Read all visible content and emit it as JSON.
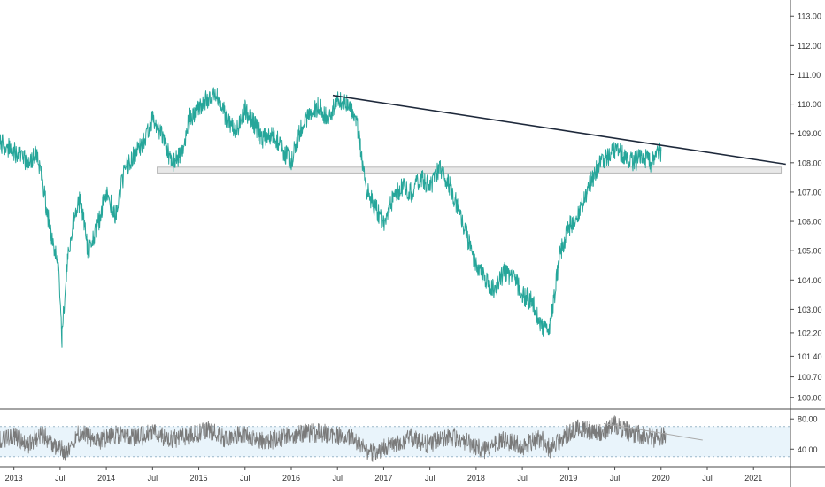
{
  "chart_data": {
    "type": "line",
    "price_panel": {
      "ylim": [
        99.6,
        113.4
      ],
      "y_ticks": [
        "113.00",
        "112.00",
        "111.00",
        "110.00",
        "109.00",
        "108.00",
        "107.00",
        "106.00",
        "105.00",
        "104.00",
        "103.00",
        "102.20",
        "101.40",
        "100.70",
        "100.00"
      ],
      "series": [
        {
          "color": "#26a69a",
          "x": [
            2012.85,
            2013.0,
            2013.15,
            2013.25,
            2013.3,
            2013.35,
            2013.42,
            2013.48,
            2013.52,
            2013.58,
            2013.65,
            2013.72,
            2013.8,
            2013.9,
            2014.0,
            2014.1,
            2014.2,
            2014.3,
            2014.4,
            2014.5,
            2014.6,
            2014.7,
            2014.8,
            2014.9,
            2015.0,
            2015.1,
            2015.2,
            2015.3,
            2015.4,
            2015.5,
            2015.6,
            2015.7,
            2015.8,
            2015.9,
            2016.0,
            2016.1,
            2016.2,
            2016.3,
            2016.4,
            2016.5,
            2016.6,
            2016.7,
            2016.75,
            2016.8,
            2016.9,
            2017.0,
            2017.1,
            2017.2,
            2017.3,
            2017.4,
            2017.5,
            2017.6,
            2017.7,
            2017.8,
            2017.9,
            2018.0,
            2018.1,
            2018.2,
            2018.3,
            2018.4,
            2018.5,
            2018.6,
            2018.7,
            2018.78,
            2018.85,
            2018.9,
            2019.0,
            2019.1,
            2019.2,
            2019.3,
            2019.4,
            2019.5,
            2019.6,
            2019.7,
            2019.8,
            2019.9,
            2020.0
          ],
          "y": [
            108.7,
            108.4,
            108.0,
            108.3,
            107.5,
            106.5,
            105.2,
            104.5,
            102.0,
            104.8,
            106.0,
            106.8,
            105.0,
            105.8,
            107.0,
            106.2,
            107.8,
            108.3,
            108.7,
            109.5,
            109.0,
            108.0,
            108.2,
            109.5,
            109.9,
            110.2,
            110.3,
            109.5,
            109.0,
            109.8,
            109.3,
            108.8,
            109.0,
            108.5,
            108.0,
            109.2,
            109.7,
            109.9,
            109.5,
            110.1,
            110.0,
            109.6,
            108.5,
            107.2,
            106.5,
            106.0,
            106.8,
            107.2,
            107.0,
            107.5,
            107.2,
            107.8,
            107.3,
            106.5,
            105.5,
            104.5,
            104.0,
            103.6,
            104.3,
            104.1,
            103.5,
            103.3,
            102.5,
            102.2,
            103.5,
            104.8,
            105.8,
            106.2,
            107.0,
            107.8,
            108.1,
            108.4,
            108.3,
            108.0,
            108.2,
            108.0,
            108.4
          ]
        }
      ],
      "annotations": {
        "trendline": {
          "color": "#1e293b",
          "x": [
            2016.45,
            2021.35
          ],
          "y": [
            110.3,
            107.95
          ]
        },
        "support_zone": {
          "color": "#d6d6d6",
          "x": [
            2014.55,
            2021.3
          ],
          "y": [
            107.65,
            107.85
          ]
        }
      }
    },
    "rsi_panel": {
      "ylim": [
        18,
        92
      ],
      "y_ticks": [
        "80.00",
        "40.00"
      ],
      "band": {
        "upper": 70,
        "lower": 30,
        "color": "#e9f4fb"
      },
      "series": [
        {
          "color": "#7a7a7a",
          "x": [
            2012.85,
            2013.0,
            2013.15,
            2013.3,
            2013.45,
            2013.55,
            2013.7,
            2013.9,
            2014.1,
            2014.3,
            2014.5,
            2014.7,
            2014.9,
            2015.1,
            2015.3,
            2015.5,
            2015.7,
            2015.9,
            2016.1,
            2016.3,
            2016.5,
            2016.7,
            2016.8,
            2016.9,
            2017.1,
            2017.3,
            2017.5,
            2017.7,
            2017.9,
            2018.1,
            2018.3,
            2018.5,
            2018.7,
            2018.8,
            2018.9,
            2019.0,
            2019.1,
            2019.2,
            2019.35,
            2019.5,
            2019.65,
            2019.8,
            2019.95,
            2020.05
          ],
          "y": [
            52,
            58,
            46,
            60,
            45,
            36,
            62,
            50,
            60,
            55,
            63,
            52,
            58,
            65,
            54,
            60,
            50,
            55,
            60,
            62,
            58,
            52,
            40,
            35,
            48,
            55,
            46,
            58,
            50,
            38,
            52,
            44,
            55,
            40,
            50,
            62,
            70,
            66,
            61,
            72,
            63,
            58,
            54,
            60
          ]
        }
      ],
      "trendline": {
        "color": "#aaaaaa",
        "x": [
          2019.38,
          2020.45
        ],
        "y": [
          74,
          52
        ]
      }
    },
    "x_axis": {
      "xlim": [
        2012.85,
        2021.4
      ],
      "ticks": [
        {
          "x": 2013.0,
          "label": "2013"
        },
        {
          "x": 2013.5,
          "label": "Jul"
        },
        {
          "x": 2014.0,
          "label": "2014"
        },
        {
          "x": 2014.5,
          "label": "Jul"
        },
        {
          "x": 2015.0,
          "label": "2015"
        },
        {
          "x": 2015.5,
          "label": "Jul"
        },
        {
          "x": 2016.0,
          "label": "2016"
        },
        {
          "x": 2016.5,
          "label": "Jul"
        },
        {
          "x": 2017.0,
          "label": "2017"
        },
        {
          "x": 2017.5,
          "label": "Jul"
        },
        {
          "x": 2018.0,
          "label": "2018"
        },
        {
          "x": 2018.5,
          "label": "Jul"
        },
        {
          "x": 2019.0,
          "label": "2019"
        },
        {
          "x": 2019.5,
          "label": "Jul"
        },
        {
          "x": 2020.0,
          "label": "2020"
        },
        {
          "x": 2020.5,
          "label": "Jul"
        },
        {
          "x": 2021.0,
          "label": "2021"
        }
      ]
    }
  }
}
